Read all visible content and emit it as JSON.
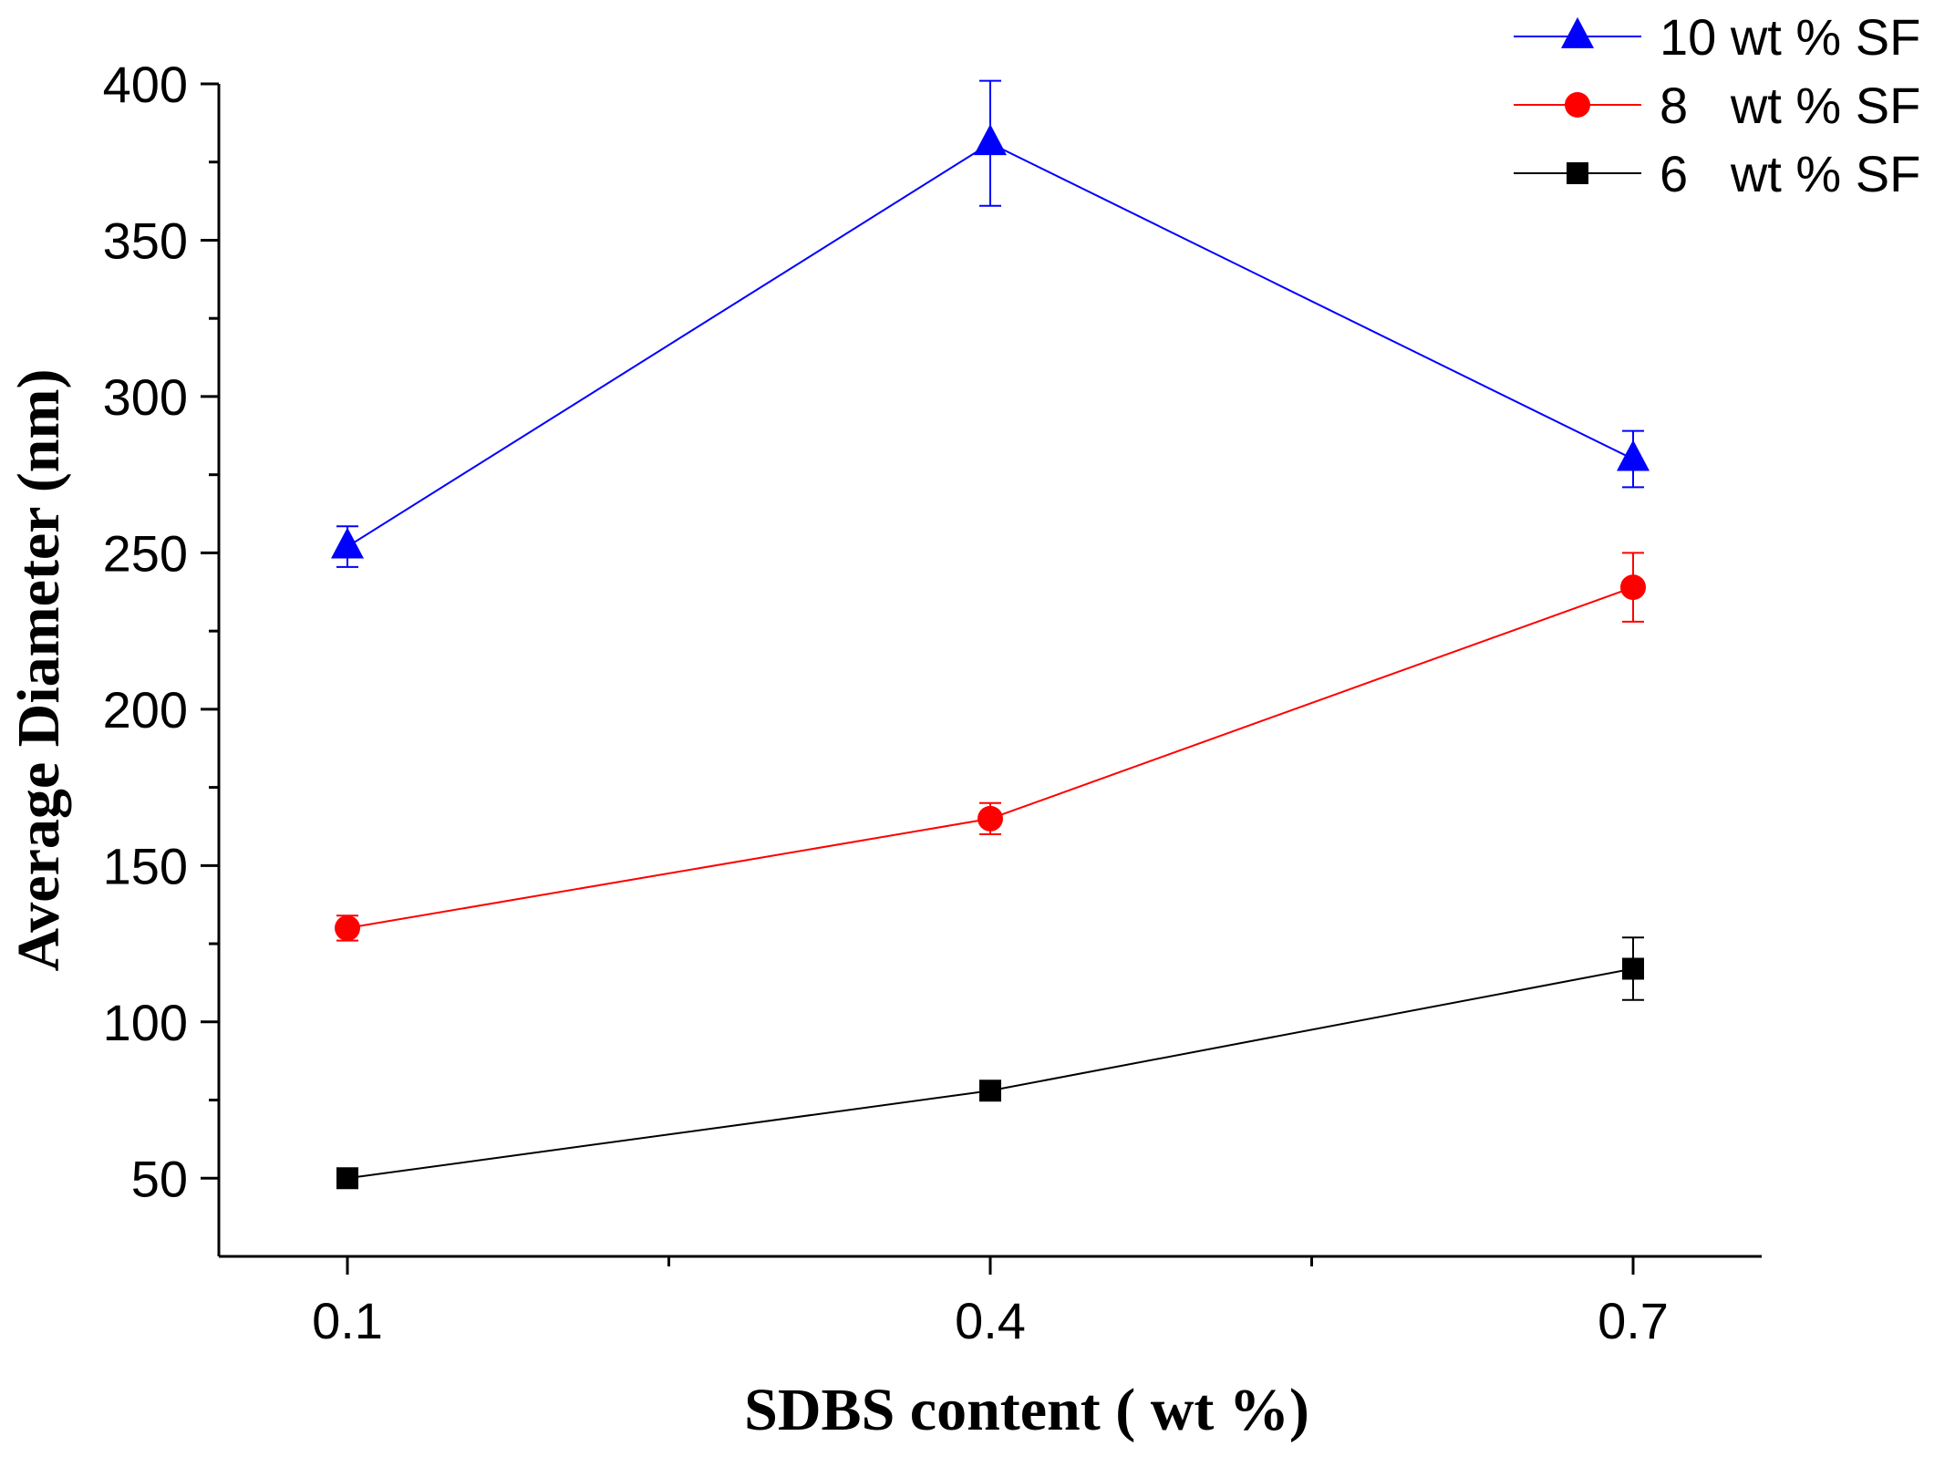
{
  "chart_data": {
    "type": "line",
    "title": "",
    "xlabel": "SDBS content ( wt %)",
    "ylabel": "Average Diameter (nm)",
    "x": [
      0.1,
      0.4,
      0.7
    ],
    "xlim": [
      0.04,
      0.76
    ],
    "ylim": [
      25,
      400
    ],
    "x_major_ticks": [
      0.1,
      0.4,
      0.7
    ],
    "x_minor_ticks": [
      0.25,
      0.55
    ],
    "y_major_ticks": [
      50,
      100,
      150,
      200,
      250,
      300,
      350,
      400
    ],
    "y_minor_ticks": [
      75,
      125,
      175,
      225,
      275,
      325,
      375
    ],
    "x_tick_labels": [
      "0.1",
      "0.4",
      "0.7"
    ],
    "y_tick_labels": [
      "50",
      "100",
      "150",
      "200",
      "250",
      "300",
      "350",
      "400"
    ],
    "grid": false,
    "legend_position": "top-right",
    "series": [
      {
        "name": "10 wt % SF",
        "color": "#0000ff",
        "marker": "triangle",
        "values": [
          252,
          381,
          280
        ],
        "errors": [
          6.5,
          20,
          9
        ]
      },
      {
        "name": "8   wt % SF",
        "color": "#ff0000",
        "marker": "circle",
        "values": [
          130,
          165,
          239
        ],
        "errors": [
          4,
          5,
          11
        ]
      },
      {
        "name": "6   wt % SF",
        "color": "#000000",
        "marker": "square",
        "values": [
          50,
          78,
          117
        ],
        "errors": [
          1,
          1,
          10
        ]
      }
    ]
  }
}
